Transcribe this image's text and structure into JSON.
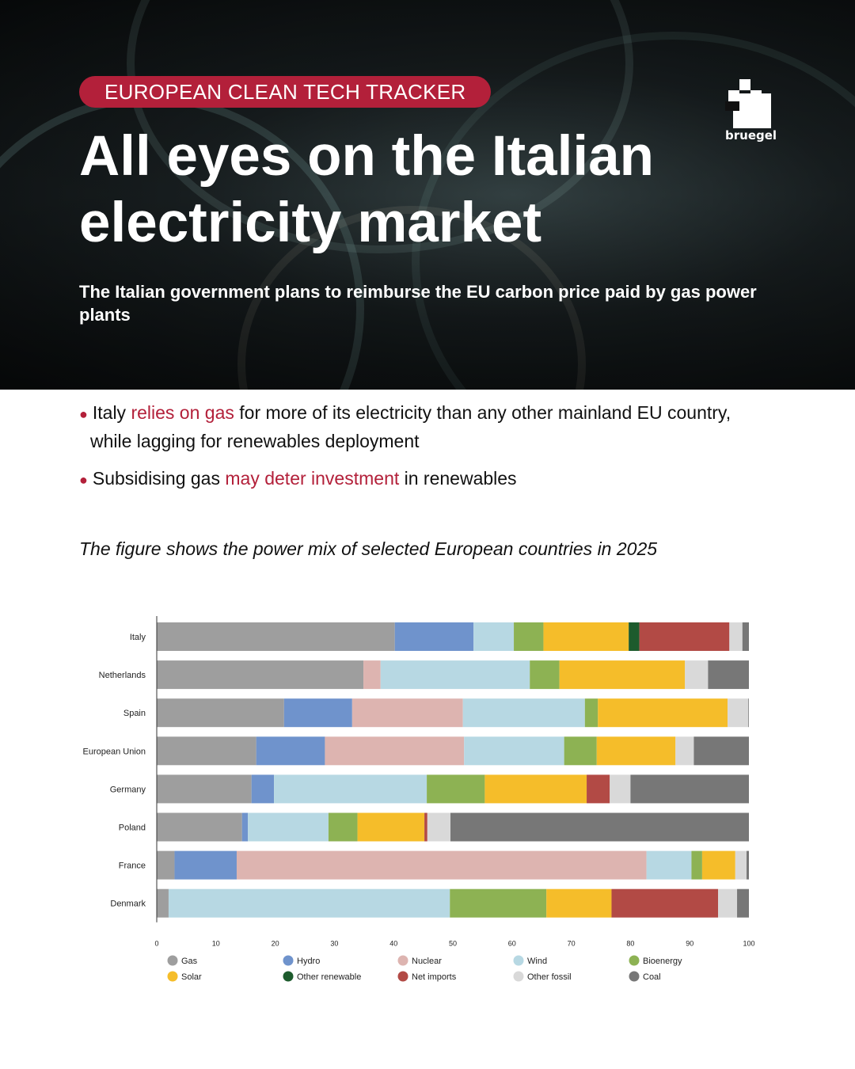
{
  "header": {
    "tag": "EUROPEAN CLEAN TECH TRACKER",
    "title_line1": "All eyes on the Italian",
    "title_line2": "electricity market",
    "subtitle": "The Italian government plans to reimburse the EU carbon price paid by gas power plants",
    "logo_text": "bruegel"
  },
  "bullets": [
    {
      "pre": "Italy ",
      "highlight": "relies on gas",
      "post": " for more of its electricity than any other mainland EU country,",
      "line2": "while lagging for renewables deployment"
    },
    {
      "pre": "Subsidising gas ",
      "highlight": "may deter investment",
      "post": " in renewables"
    }
  ],
  "caption": "The figure shows the power mix of selected European countries in 2025",
  "colors": {
    "accent": "#b3203a"
  },
  "chart_data": {
    "type": "bar",
    "orientation": "horizontal",
    "stacked": true,
    "title": "",
    "xlabel": "",
    "ylabel": "",
    "xlim": [
      0,
      100
    ],
    "xticks": [
      0,
      10,
      20,
      30,
      40,
      50,
      60,
      70,
      80,
      90,
      100
    ],
    "grid": false,
    "legend_position": "bottom",
    "categories": [
      "Italy",
      "Netherlands",
      "Spain",
      "European Union",
      "Germany",
      "Poland",
      "France",
      "Denmark"
    ],
    "series": [
      {
        "name": "Gas",
        "color": "#9e9e9e",
        "values": [
          40.2,
          34.9,
          21.5,
          16.8,
          16.0,
          14.4,
          3.0,
          2.0
        ]
      },
      {
        "name": "Hydro",
        "color": "#6f93cc",
        "values": [
          13.3,
          0,
          11.5,
          11.6,
          3.8,
          1.0,
          10.5,
          0
        ]
      },
      {
        "name": "Nuclear",
        "color": "#ddb4b0",
        "values": [
          0,
          2.9,
          18.7,
          23.5,
          0,
          0,
          69.2,
          0
        ]
      },
      {
        "name": "Wind",
        "color": "#b7d8e3",
        "values": [
          6.8,
          25.2,
          20.6,
          16.9,
          25.8,
          13.6,
          7.6,
          47.5
        ]
      },
      {
        "name": "Bioenergy",
        "color": "#8db253",
        "values": [
          5.0,
          5.0,
          2.2,
          5.5,
          9.8,
          4.9,
          1.8,
          16.3
        ]
      },
      {
        "name": "Solar",
        "color": "#f5bd2a",
        "values": [
          14.4,
          21.2,
          21.9,
          13.3,
          17.2,
          11.3,
          5.6,
          11.0
        ]
      },
      {
        "name": "Other renewable",
        "color": "#1d5b2d",
        "values": [
          1.8,
          0,
          0,
          0,
          0,
          0,
          0,
          0
        ]
      },
      {
        "name": "Net imports",
        "color": "#b24a45",
        "values": [
          15.2,
          0,
          0,
          0,
          3.9,
          0.5,
          0,
          18.0
        ]
      },
      {
        "name": "Other fossil",
        "color": "#d9d9d9",
        "values": [
          2.2,
          3.9,
          3.5,
          3.1,
          3.5,
          3.9,
          1.9,
          3.2
        ]
      },
      {
        "name": "Coal",
        "color": "#777777",
        "values": [
          1.1,
          6.9,
          0.1,
          9.3,
          20.0,
          50.4,
          0.4,
          2.0
        ]
      }
    ]
  }
}
